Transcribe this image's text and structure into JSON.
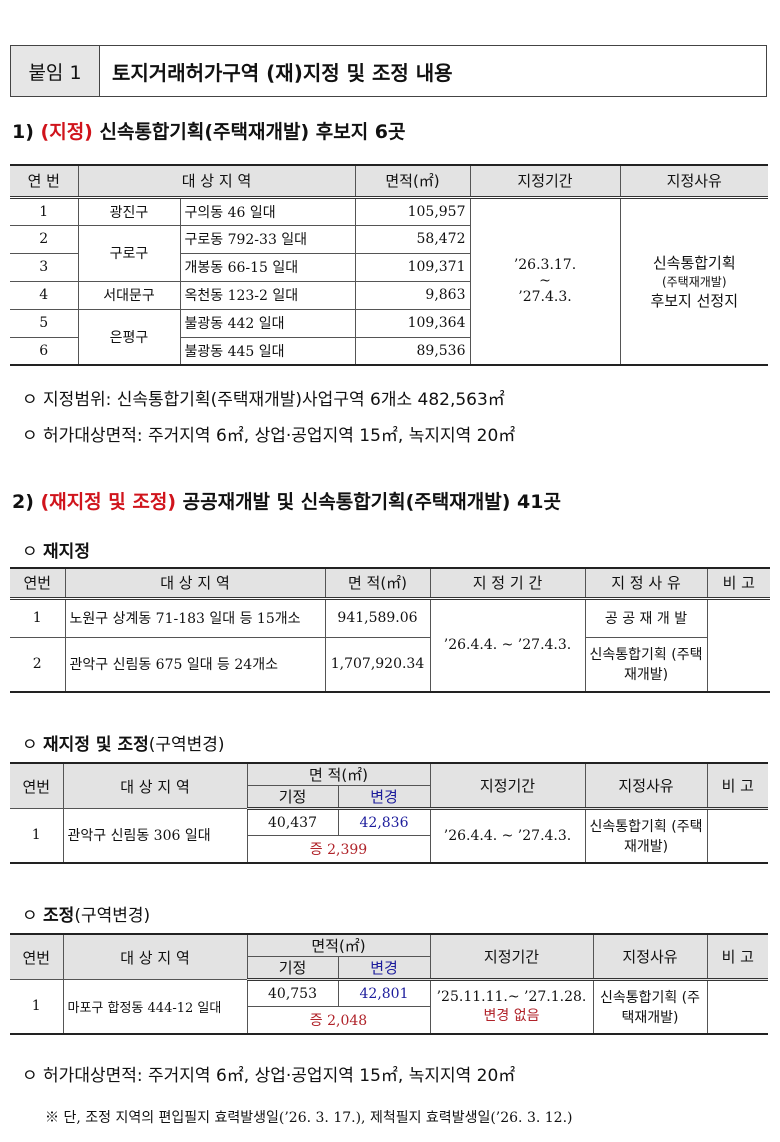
{
  "header": {
    "label": "붙임 1",
    "title": "토지거래허가구역 (재)지정 및 조정 내용"
  },
  "s1": {
    "num": "1)",
    "tag": "(지정)",
    "title": "신속통합기획(주택재개발) 후보지 6곳",
    "cols": [
      "연 번",
      "대 상 지 역",
      "면적(㎡)",
      "지정기간",
      "지정사유"
    ],
    "rows": [
      {
        "no": "1",
        "gu": "광진구",
        "dong": "구의동 46 일대",
        "area": "105,957"
      },
      {
        "no": "2",
        "gu": "구로구",
        "dong": "구로동 792-33 일대",
        "area": "58,472"
      },
      {
        "no": "3",
        "gu": "",
        "dong": "개봉동 66-15 일대",
        "area": "109,371"
      },
      {
        "no": "4",
        "gu": "서대문구",
        "dong": "옥천동 123-2 일대",
        "area": "9,863"
      },
      {
        "no": "5",
        "gu": "은평구",
        "dong": "불광동 442 일대",
        "area": "109,364"
      },
      {
        "no": "6",
        "gu": "",
        "dong": "불광동 445 일대",
        "area": "89,536"
      }
    ],
    "period_start": "’26.3.17.",
    "period_sep": "~",
    "period_end": "’27.4.3.",
    "reason1": "신속통합기획",
    "reason2": "(주택재개발)",
    "reason3": "후보지 선정지",
    "bullets": [
      "ㅇ 지정범위: 신속통합기획(주택재개발)사업구역 6개소 482,563㎡",
      "ㅇ 허가대상면적: 주거지역 6㎡, 상업·공업지역 15㎡, 녹지지역 20㎡"
    ]
  },
  "s2": {
    "num": "2)",
    "tag": "(재지정 및 조정)",
    "title": "공공재개발 및 신속통합기획(주택재개발) 41곳",
    "t1": {
      "heading": "재지정",
      "cols": [
        "연번",
        "대 상 지 역",
        "면 적(㎡)",
        "지 정 기 간",
        "지 정 사 유",
        "비 고"
      ],
      "rows": [
        {
          "no": "1",
          "area_name": "노원구 상계동 71-183 일대 등 15개소",
          "area": "941,589.06",
          "reason": "공 공 재 개 발"
        },
        {
          "no": "2",
          "area_name": "관악구 신림동 675 일대 등 24개소",
          "area": "1,707,920.34",
          "reason": "신속통합기획 (주택재개발)"
        }
      ],
      "period": "’26.4.4. ~ ’27.4.3."
    },
    "t2": {
      "heading": "재지정 및 조정",
      "heading_sub": "(구역변경)",
      "cols": [
        "연번",
        "대 상 지 역",
        "면 적(㎡)",
        "기정",
        "변경",
        "지정기간",
        "지정사유",
        "비 고"
      ],
      "row": {
        "no": "1",
        "area_name": "관악구 신림동 306 일대",
        "before": "40,437",
        "after": "42,836",
        "diff": "증 2,399",
        "period": "’26.4.4. ~ ’27.4.3.",
        "reason": "신속통합기획 (주택재개발)"
      }
    },
    "t3": {
      "heading": "조정",
      "heading_sub": "(구역변경)",
      "cols": [
        "연번",
        "대 상 지 역",
        "면적(㎡)",
        "기정",
        "변경",
        "지정기간",
        "지정사유",
        "비 고"
      ],
      "row": {
        "no": "1",
        "area_name": "마포구 합정동 444-12 일대",
        "before": "40,753",
        "after": "42,801",
        "diff": "증 2,048",
        "period": "’25.11.11.~ ’27.1.28.",
        "period_note": "변경 없음",
        "reason": "신속통합기획 (주택재개발)"
      }
    },
    "bullet": "ㅇ 허가대상면적: 주거지역 6㎡, 상업·공업지역 15㎡, 녹지지역 20㎡",
    "note": "※ 단, 조정 지역의 편입필지 효력발생일(’26. 3. 17.), 제척필지 효력발생일(’26. 3. 12.)"
  }
}
